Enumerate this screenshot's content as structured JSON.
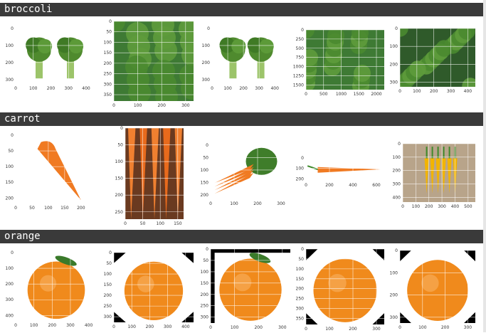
{
  "sections": [
    {
      "label": "broccoli",
      "images": [
        {
          "subject": "broccoli-two-heads-white-bg",
          "xticks": [
            "0",
            "100",
            "200",
            "300",
            "400"
          ],
          "yticks": [
            "0",
            "100",
            "200",
            "300"
          ]
        },
        {
          "subject": "broccoli-pile-closeup",
          "xticks": [
            "0",
            "100",
            "200",
            "300"
          ],
          "yticks": [
            "0",
            "50",
            "100",
            "150",
            "200",
            "250",
            "300",
            "350"
          ]
        },
        {
          "subject": "broccoli-two-florets",
          "xticks": [
            "0",
            "100",
            "200",
            "300",
            "400"
          ],
          "yticks": [
            "0",
            "100",
            "200",
            "300"
          ]
        },
        {
          "subject": "broccoli-leaves-closeup",
          "xticks": [
            "0",
            "500",
            "1000",
            "1500",
            "2000"
          ],
          "yticks": [
            "0",
            "250",
            "500",
            "750",
            "1000",
            "1250",
            "1500"
          ]
        },
        {
          "subject": "broccoli-florets-dark",
          "xticks": [
            "0",
            "100",
            "200",
            "300",
            "400"
          ],
          "yticks": [
            "0",
            "100",
            "200",
            "300"
          ]
        }
      ]
    },
    {
      "label": "carrot",
      "images": [
        {
          "subject": "single-carrot-diagonal",
          "xticks": [
            "0",
            "50",
            "100",
            "150",
            "200"
          ],
          "yticks": [
            "0",
            "50",
            "100",
            "150",
            "200"
          ]
        },
        {
          "subject": "carrots-bunch-vertical",
          "xticks": [
            "0",
            "50",
            "100",
            "150"
          ],
          "yticks": [
            "0",
            "50",
            "100",
            "150",
            "200",
            "250"
          ]
        },
        {
          "subject": "carrots-with-greens",
          "xticks": [
            "0",
            "100",
            "200",
            "300"
          ],
          "yticks": [
            "0",
            "50",
            "100",
            "150",
            "200"
          ]
        },
        {
          "subject": "single-carrot-horizontal",
          "xticks": [
            "0",
            "200",
            "400",
            "600"
          ],
          "yticks": [
            "0",
            "100",
            "200"
          ]
        },
        {
          "subject": "yellow-carrots-on-wood",
          "xticks": [
            "0",
            "100",
            "200",
            "300",
            "400",
            "500"
          ],
          "yticks": [
            "0",
            "100",
            "200",
            "300",
            "400"
          ]
        }
      ]
    },
    {
      "label": "orange",
      "images": [
        {
          "subject": "orange-with-leaf",
          "xticks": [
            "0",
            "100",
            "200",
            "300",
            "400"
          ],
          "yticks": [
            "0",
            "100",
            "200",
            "300",
            "400"
          ]
        },
        {
          "subject": "orange-rotated",
          "xticks": [
            "0",
            "100",
            "200",
            "300",
            "400"
          ],
          "yticks": [
            "0",
            "50",
            "100",
            "150",
            "200",
            "250",
            "300"
          ]
        },
        {
          "subject": "orange-with-leaf-framed",
          "xticks": [
            "0",
            "100",
            "200",
            "300"
          ],
          "yticks": [
            "0",
            "50",
            "100",
            "150",
            "200",
            "250",
            "300"
          ]
        },
        {
          "subject": "orange-rotated-2",
          "xticks": [
            "0",
            "100",
            "200",
            "300"
          ],
          "yticks": [
            "0",
            "50",
            "100",
            "150",
            "200",
            "250",
            "300",
            "350"
          ]
        },
        {
          "subject": "orange-rotated-3",
          "xticks": [
            "0",
            "100",
            "200",
            "300"
          ],
          "yticks": [
            "0",
            "100",
            "200",
            "300"
          ]
        }
      ]
    }
  ],
  "colors": {
    "header_bg": "#3a3a3a",
    "header_text": "#ffffff",
    "broccoli": "#4f8a2e",
    "carrot": "#f07a22",
    "orange": "#f08a1c"
  }
}
